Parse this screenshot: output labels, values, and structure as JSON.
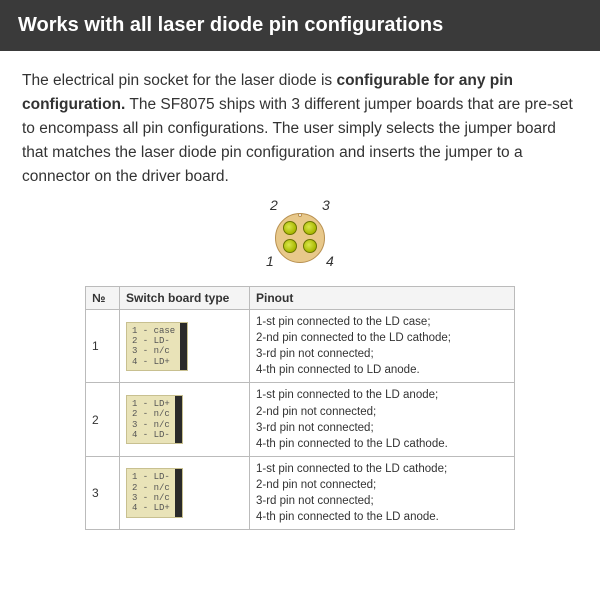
{
  "header": {
    "title": "Works with all laser diode pin configurations"
  },
  "paragraph": {
    "pre": "The electrical pin socket for the laser diode is ",
    "bold": "configurable for any pin configuration.",
    "post": " The SF8075 ships with 3 different jumper boards that are pre-set to encompass all pin configurations. The user simply selects the jumper board that matches the laser diode pin configuration and inserts the jumper to a connector on the driver board."
  },
  "diagram": {
    "pin_labels": {
      "p1": "1",
      "p2": "2",
      "p3": "3",
      "p4": "4"
    }
  },
  "table": {
    "headers": {
      "no": "№",
      "type": "Switch board type",
      "pinout": "Pinout"
    },
    "rows": [
      {
        "no": "1",
        "board_lines": "1 - case\n2 - LD-\n3 - n/c\n4 - LD+",
        "pinout": {
          "l1": "1-st pin connected to the LD case;",
          "l2": "2-nd pin connected to the LD cathode;",
          "l3": "3-rd pin not connected;",
          "l4": "4-th pin connected to LD anode."
        }
      },
      {
        "no": "2",
        "board_lines": "1 - LD+\n2 - n/c\n3 - n/c\n4 - LD-",
        "pinout": {
          "l1": "1-st pin connected to the LD anode;",
          "l2": "2-nd pin not connected;",
          "l3": "3-rd pin not connected;",
          "l4": "4-th pin connected to the LD cathode."
        }
      },
      {
        "no": "3",
        "board_lines": "1 - LD-\n2 - n/c\n3 - n/c\n4 - LD+",
        "pinout": {
          "l1": "1-st pin connected to the LD cathode;",
          "l2": "2-nd pin not connected;",
          "l3": "3-rd pin not connected;",
          "l4": "4-th pin connected to the LD anode."
        }
      }
    ]
  }
}
